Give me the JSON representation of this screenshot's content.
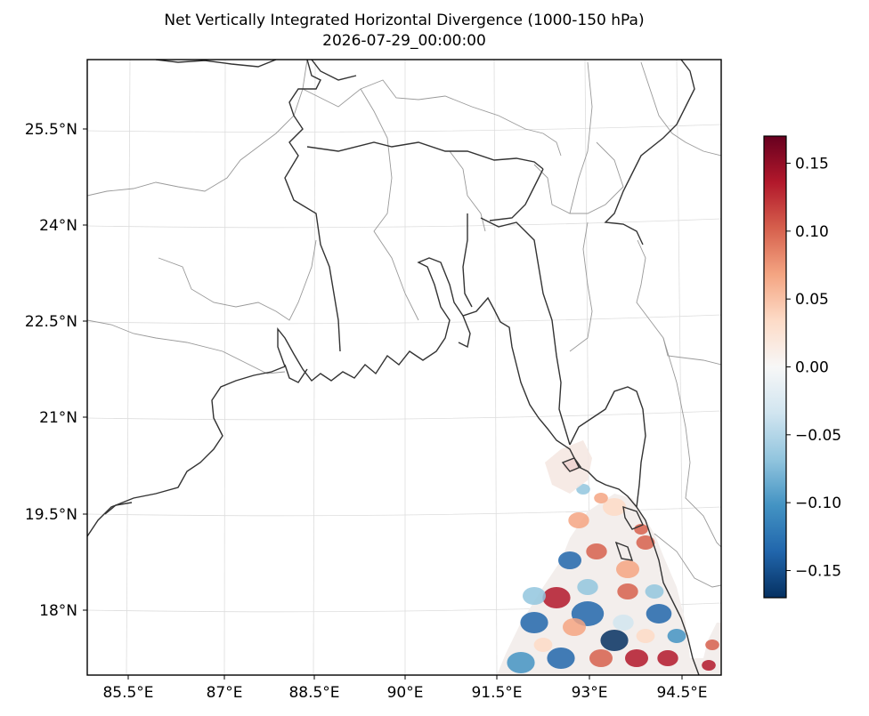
{
  "title": {
    "line1": "Net Vertically Integrated Horizontal Divergence (1000-150 hPa)",
    "line2": "2026-07-29_00:00:00"
  },
  "map": {
    "x_ticks": [
      "85.5°E",
      "87°E",
      "88.5°E",
      "90°E",
      "91.5°E",
      "93°E",
      "94.5°E"
    ],
    "y_ticks": [
      "25.5°N",
      "24°N",
      "22.5°N",
      "21°N",
      "19.5°N",
      "18°N"
    ],
    "colors": {
      "coastline": "#333333",
      "borders": "#999999",
      "gridlines": "#dddddd",
      "frame": "#000000"
    }
  },
  "colorbar": {
    "colormap": "RdBu_r",
    "range": [
      -0.17,
      0.17
    ],
    "ticks": [
      "0.15",
      "0.10",
      "0.05",
      "0.00",
      "−0.05",
      "−0.10",
      "−0.15"
    ],
    "colors": [
      "#053061",
      "#2166ac",
      "#4393c3",
      "#92c5de",
      "#d1e5f0",
      "#f7f7f7",
      "#fddbc7",
      "#f4a582",
      "#d6604d",
      "#b2182b",
      "#67001f"
    ]
  }
}
